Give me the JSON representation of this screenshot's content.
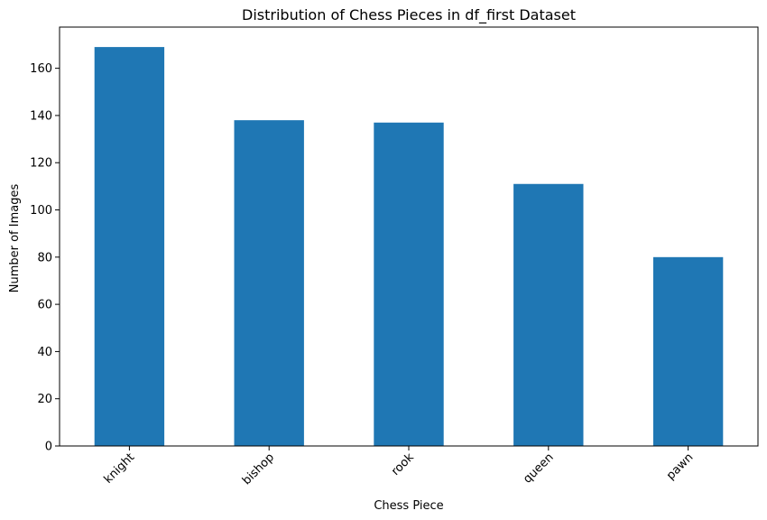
{
  "chart_data": {
    "type": "bar",
    "title": "Distribution of Chess Pieces in df_first Dataset",
    "xlabel": "Chess Piece",
    "ylabel": "Number of Images",
    "categories": [
      "knight",
      "bishop",
      "rook",
      "queen",
      "pawn"
    ],
    "values": [
      169,
      138,
      137,
      111,
      80
    ],
    "ylim": [
      0,
      177.45
    ],
    "yticks": [
      0,
      20,
      40,
      60,
      80,
      100,
      120,
      140,
      160
    ],
    "bar_color": "#1f77b4",
    "grid": false,
    "legend": "none",
    "xtick_rotation": 45
  }
}
